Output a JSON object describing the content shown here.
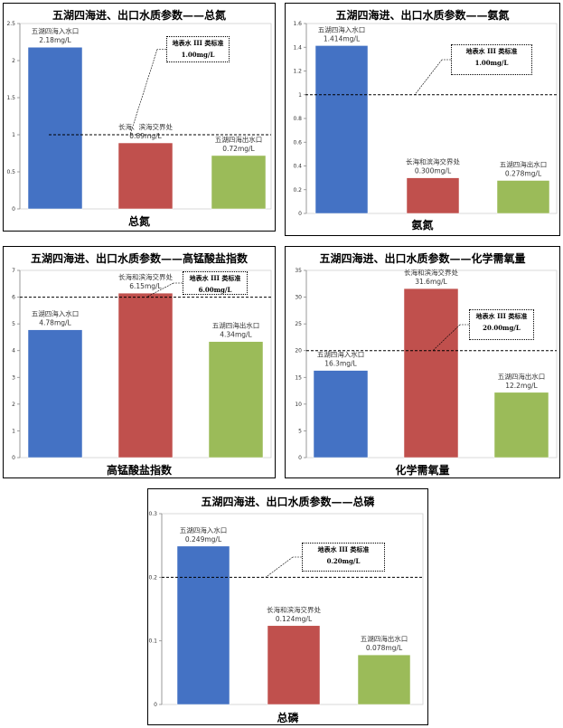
{
  "chart_data": [
    {
      "type": "bar",
      "title": "五湖四海进、出口水质参数——总氮",
      "xlabel": "总氮",
      "ylim": [
        0,
        2.5
      ],
      "yticks": [
        "0",
        "0.5",
        "1",
        "1.5",
        "2",
        "2.5"
      ],
      "categories": [
        "五湖四海入水口",
        "长海、滨海交界处",
        "五湖四海出水口"
      ],
      "value_labels": [
        "2.18mg/L",
        "0.89mg/L",
        "0.72mg/L"
      ],
      "values": [
        2.18,
        0.89,
        0.72
      ],
      "colors": [
        "#4472C4",
        "#C0504D",
        "#9BBB59"
      ],
      "standard": {
        "value": 1.0,
        "line1": "地表水 III 类标准",
        "line2": "1.00mg/L"
      }
    },
    {
      "type": "bar",
      "title": "五湖四海进、出口水质参数——氨氮",
      "xlabel": "氨氮",
      "ylim": [
        0,
        1.6
      ],
      "yticks": [
        "0",
        "0.2",
        "0.4",
        "0.6",
        "0.8",
        "1",
        "1.2",
        "1.4",
        "1.6"
      ],
      "categories": [
        "五湖四海入水口",
        "长海和滨海交界处",
        "五湖四海出水口"
      ],
      "value_labels": [
        "1.414mg/L",
        "0.300mg/L",
        "0.278mg/L"
      ],
      "values": [
        1.414,
        0.3,
        0.278
      ],
      "colors": [
        "#4472C4",
        "#C0504D",
        "#9BBB59"
      ],
      "standard": {
        "value": 1.0,
        "line1": "地表水 III 类标准",
        "line2": "1.00mg/L"
      }
    },
    {
      "type": "bar",
      "title": "五湖四海进、出口水质参数——高锰酸盐指数",
      "xlabel": "高锰酸盐指数",
      "ylim": [
        0,
        7
      ],
      "yticks": [
        "0",
        "1",
        "2",
        "3",
        "4",
        "5",
        "6",
        "7"
      ],
      "categories": [
        "五湖四海入水口",
        "长海和滨海交界处",
        "五湖四海出水口"
      ],
      "value_labels": [
        "4.78mg/L",
        "6.15mg/L",
        "4.34mg/L"
      ],
      "values": [
        4.78,
        6.15,
        4.34
      ],
      "colors": [
        "#4472C4",
        "#C0504D",
        "#9BBB59"
      ],
      "standard": {
        "value": 6.0,
        "line1": "地表水 III 类标准",
        "line2": "6.00mg/L"
      }
    },
    {
      "type": "bar",
      "title": "五湖四海进、出口水质参数——化学需氧量",
      "xlabel": "化学需氧量",
      "ylim": [
        0,
        35
      ],
      "yticks": [
        "0",
        "5",
        "10",
        "15",
        "20",
        "25",
        "30",
        "35"
      ],
      "categories": [
        "五湖四海入水口",
        "长海和滨海交界处",
        "五湖四海出水口"
      ],
      "value_labels": [
        "16.3mg/L",
        "31.6mg/L",
        "12.2mg/L"
      ],
      "values": [
        16.3,
        31.6,
        12.2
      ],
      "colors": [
        "#4472C4",
        "#C0504D",
        "#9BBB59"
      ],
      "standard": {
        "value": 20.0,
        "line1": "地表水 III 类标准",
        "line2": "20.00mg/L"
      }
    },
    {
      "type": "bar",
      "title": "五湖四海进、出口水质参数——总磷",
      "xlabel": "总磷",
      "ylim": [
        0,
        0.3
      ],
      "yticks": [
        "0",
        "0.1",
        "0.2",
        "0.3"
      ],
      "categories": [
        "五湖四海入水口",
        "长海和滨海交界处",
        "五湖四海出水口"
      ],
      "value_labels": [
        "0.249mg/L",
        "0.124mg/L",
        "0.078mg/L"
      ],
      "values": [
        0.249,
        0.124,
        0.078
      ],
      "colors": [
        "#4472C4",
        "#C0504D",
        "#9BBB59"
      ],
      "standard": {
        "value": 0.2,
        "line1": "地表水 III 类标准",
        "line2": "0.20mg/L"
      }
    }
  ]
}
